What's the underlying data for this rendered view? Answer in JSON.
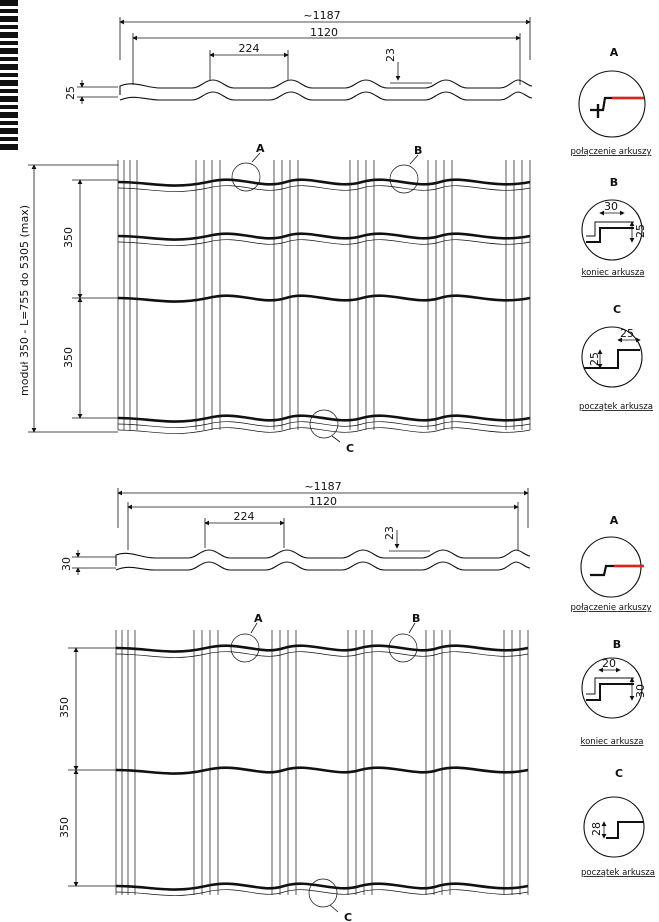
{
  "drawings": [
    {
      "dims": {
        "overall": "~1187",
        "effective": "1120",
        "module_width": "224",
        "profile_height": "23",
        "side_height": "25",
        "module1": "350",
        "module2": "350",
        "vertical_caption": "moduł 350 - L=755 do 5305 (max)"
      },
      "markers": {
        "a": "A",
        "b": "B",
        "c": "C"
      },
      "details": [
        {
          "letter": "A",
          "caption": "połączenie arkuszy"
        },
        {
          "letter": "B",
          "caption": "koniec arkusza",
          "dim1": "30",
          "dim2": "25"
        },
        {
          "letter": "C",
          "caption": "początek arkusza",
          "dim1": "25",
          "dim2": "25"
        }
      ]
    },
    {
      "dims": {
        "overall": "~1187",
        "effective": "1120",
        "module_width": "224",
        "profile_height": "23",
        "side_height": "30",
        "module1": "350",
        "module2": "350"
      },
      "markers": {
        "a": "A",
        "b": "B",
        "c": "C"
      },
      "details": [
        {
          "letter": "A",
          "caption": "połączenie arkuszy"
        },
        {
          "letter": "B",
          "caption": "koniec arkusza",
          "dim1": "20",
          "dim2": "30"
        },
        {
          "letter": "C",
          "caption": "początek arkusza",
          "dim1": "28"
        }
      ]
    }
  ],
  "colors": {
    "line": "#111111",
    "accent": "#e0231c"
  },
  "qr_icon": "qr-code-icon"
}
